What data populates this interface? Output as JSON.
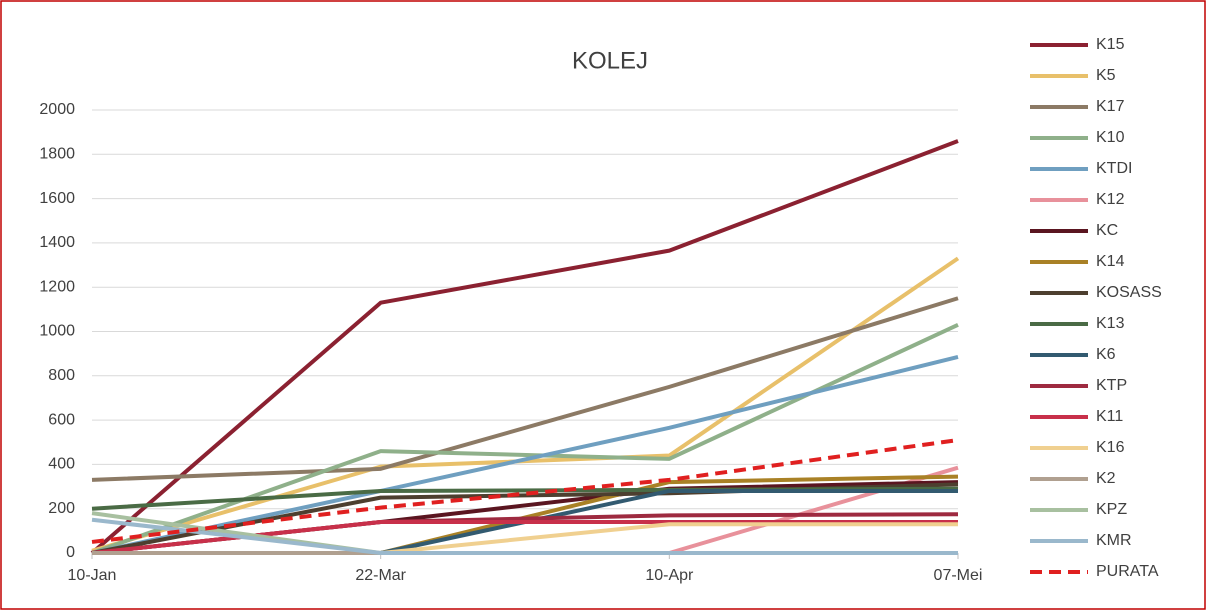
{
  "chart_data": {
    "type": "line",
    "title": "KOLEJ",
    "categories": [
      "10-Jan",
      "22-Mar",
      "10-Apr",
      "07-Mei"
    ],
    "ylim": [
      0,
      2000
    ],
    "yticks": [
      0,
      200,
      400,
      600,
      800,
      1000,
      1200,
      1400,
      1600,
      1800,
      2000
    ],
    "grid": true,
    "legend": "right",
    "series": [
      {
        "name": "K15",
        "color": "#8b2131",
        "values": [
          0,
          1130,
          1365,
          1860
        ]
      },
      {
        "name": "K5",
        "color": "#e8c06a",
        "values": [
          10,
          390,
          440,
          1330
        ]
      },
      {
        "name": "K17",
        "color": "#8c7a65",
        "values": [
          330,
          380,
          750,
          1150
        ]
      },
      {
        "name": "K10",
        "color": "#8fb08a",
        "values": [
          0,
          460,
          425,
          1030
        ]
      },
      {
        "name": "KTDI",
        "color": "#6f9fc0",
        "values": [
          0,
          280,
          565,
          885
        ]
      },
      {
        "name": "K12",
        "color": "#e8919b",
        "values": [
          0,
          0,
          0,
          385
        ]
      },
      {
        "name": "KC",
        "color": "#5a1520",
        "values": [
          0,
          140,
          290,
          320
        ]
      },
      {
        "name": "K14",
        "color": "#a98126",
        "values": [
          0,
          0,
          320,
          345
        ]
      },
      {
        "name": "KOSASS",
        "color": "#4d3f2f",
        "values": [
          0,
          250,
          270,
          310
        ]
      },
      {
        "name": "K13",
        "color": "#4a6b45",
        "values": [
          200,
          280,
          285,
          290
        ]
      },
      {
        "name": "K6",
        "color": "#325a70",
        "values": [
          0,
          0,
          280,
          280
        ]
      },
      {
        "name": "KTP",
        "color": "#9e2a40",
        "values": [
          0,
          140,
          170,
          175
        ]
      },
      {
        "name": "K11",
        "color": "#c8304a",
        "values": [
          0,
          140,
          140,
          140
        ]
      },
      {
        "name": "K16",
        "color": "#f0d090",
        "values": [
          0,
          0,
          130,
          130
        ]
      },
      {
        "name": "K2",
        "color": "#b0a090",
        "values": [
          0,
          0,
          0,
          0
        ]
      },
      {
        "name": "KPZ",
        "color": "#a8c0a0",
        "values": [
          180,
          0,
          0,
          0
        ]
      },
      {
        "name": "KMR",
        "color": "#9ab8cc",
        "values": [
          150,
          0,
          0,
          0
        ]
      },
      {
        "name": "PURATA",
        "color": "#e02020",
        "dashed": true,
        "values": [
          50,
          205,
          330,
          510
        ]
      }
    ]
  }
}
